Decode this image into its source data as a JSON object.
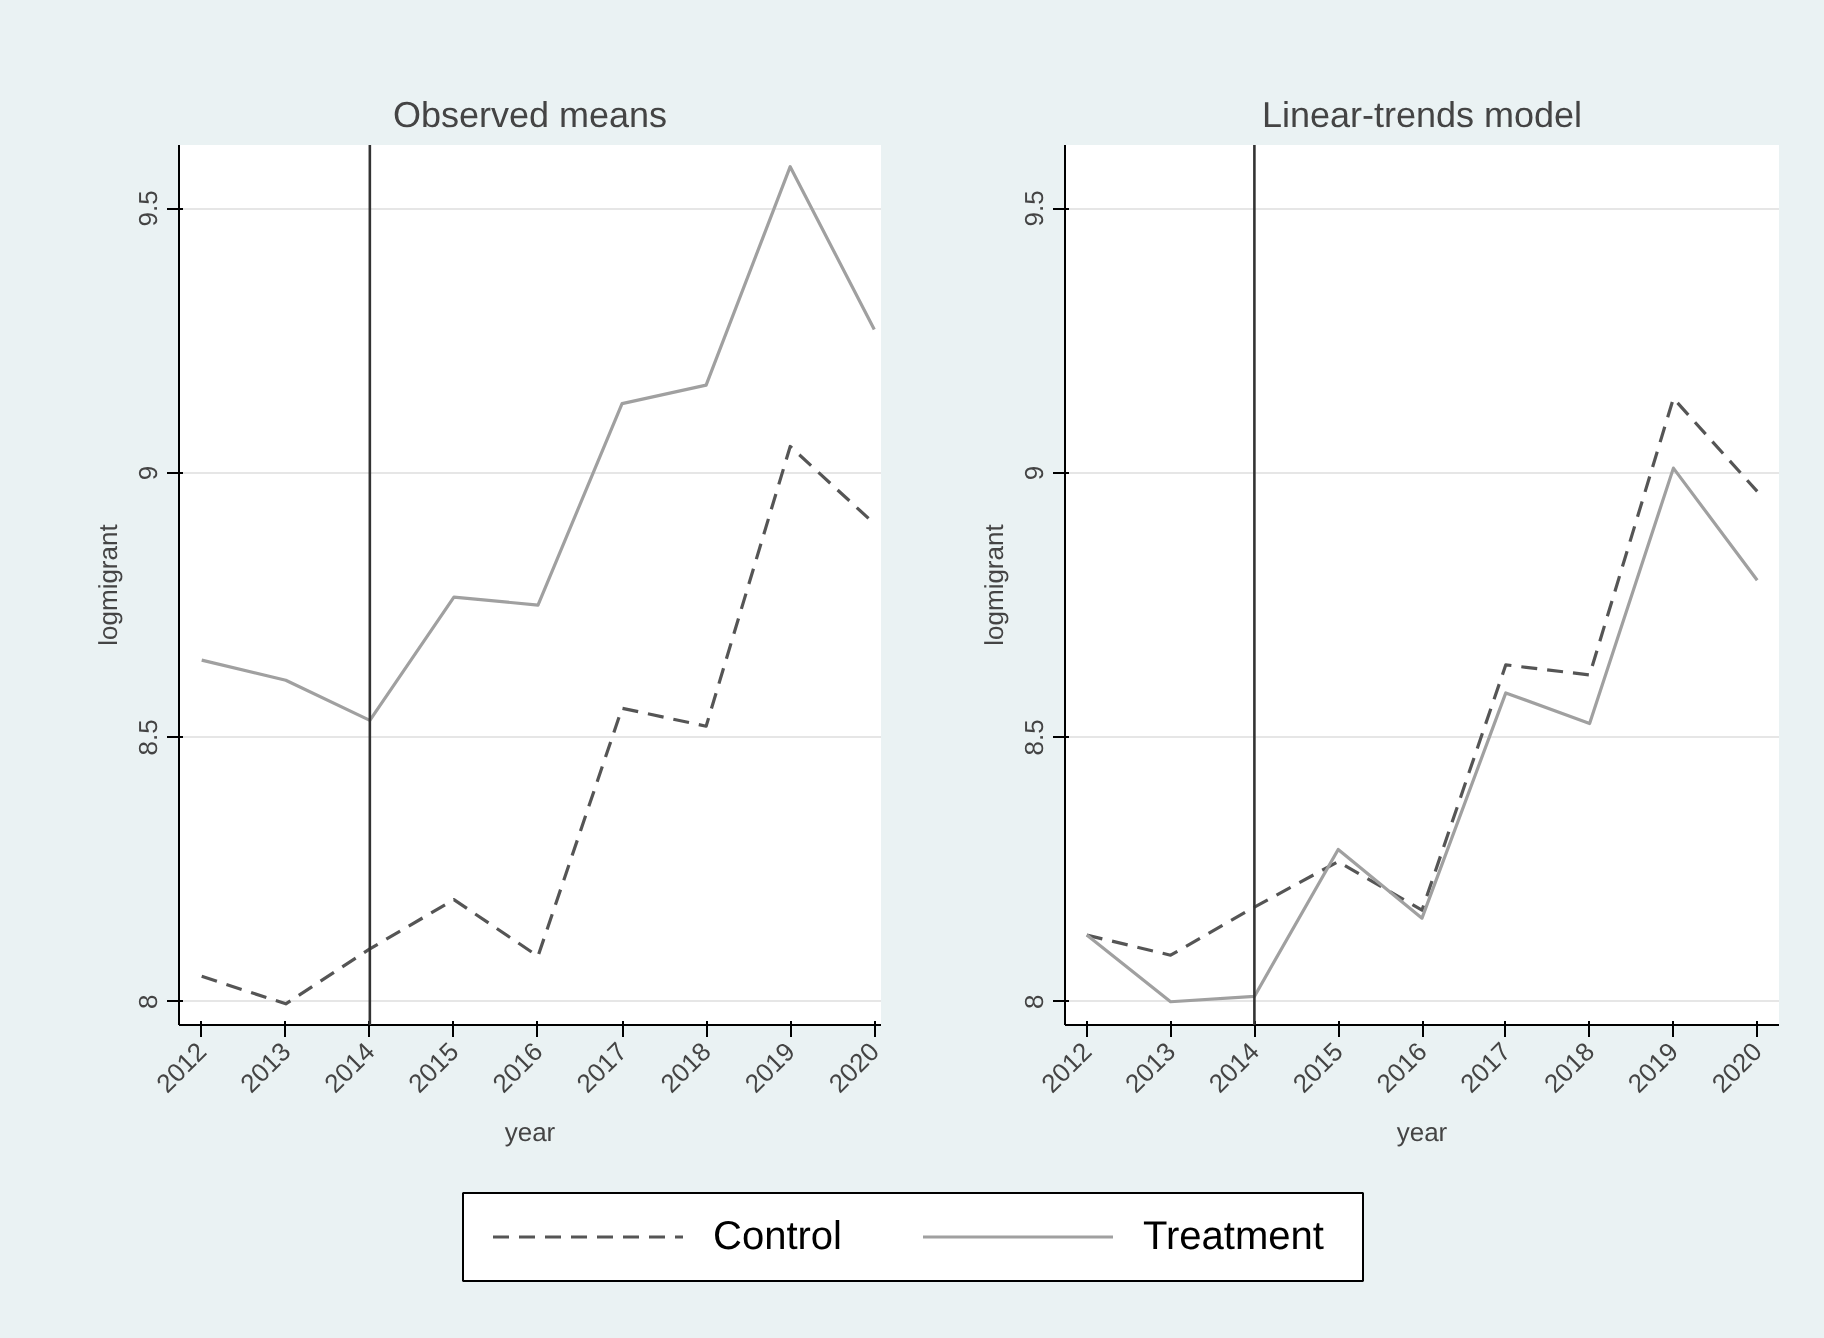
{
  "chart_data": [
    {
      "type": "line",
      "title": "Observed means",
      "xlabel": "year",
      "ylabel": "logmigrant",
      "x": [
        2012,
        2013,
        2014,
        2015,
        2016,
        2017,
        2018,
        2019,
        2020
      ],
      "xlim": [
        2011.73,
        2020.08
      ],
      "xticks": [
        2012,
        2013,
        2014,
        2015,
        2016,
        2017,
        2018,
        2019,
        2020
      ],
      "ylim": [
        7.956,
        9.62
      ],
      "yticks": [
        8,
        8.5,
        9,
        9.5
      ],
      "grid": "y",
      "legend": "bottom",
      "ref_lines": [
        {
          "axis": "x",
          "value": 2014,
          "color": "#333333"
        }
      ],
      "series": [
        {
          "name": "Control",
          "color": "#555555",
          "line_style": "dashed",
          "values": [
            8.048,
            7.996,
            8.1,
            8.193,
            8.086,
            8.555,
            8.521,
            9.05,
            8.904
          ]
        },
        {
          "name": "Treatment",
          "color": "#a0a0a0",
          "line_style": "solid",
          "values": [
            8.646,
            8.608,
            8.532,
            8.765,
            8.75,
            9.131,
            9.166,
            9.579,
            9.271
          ]
        }
      ]
    },
    {
      "type": "line",
      "title": "Linear-trends model",
      "xlabel": "year",
      "ylabel": "logmigrant",
      "x": [
        2012,
        2013,
        2014,
        2015,
        2016,
        2017,
        2018,
        2019,
        2020
      ],
      "xlim": [
        2011.74,
        2020.26
      ],
      "xticks": [
        2012,
        2013,
        2014,
        2015,
        2016,
        2017,
        2018,
        2019,
        2020
      ],
      "ylim": [
        7.956,
        9.62
      ],
      "yticks": [
        8,
        8.5,
        9,
        9.5
      ],
      "grid": "y",
      "legend": "bottom",
      "ref_lines": [
        {
          "axis": "x",
          "value": 2014,
          "color": "#333333"
        }
      ],
      "series": [
        {
          "name": "Control",
          "color": "#555555",
          "line_style": "dashed",
          "values": [
            8.126,
            8.088,
            8.179,
            8.265,
            8.173,
            8.637,
            8.618,
            9.141,
            8.965
          ]
        },
        {
          "name": "Treatment",
          "color": "#a0a0a0",
          "line_style": "solid",
          "values": [
            8.126,
            8.0,
            8.01,
            8.288,
            8.158,
            8.584,
            8.526,
            9.009,
            8.797
          ]
        }
      ]
    }
  ]
}
